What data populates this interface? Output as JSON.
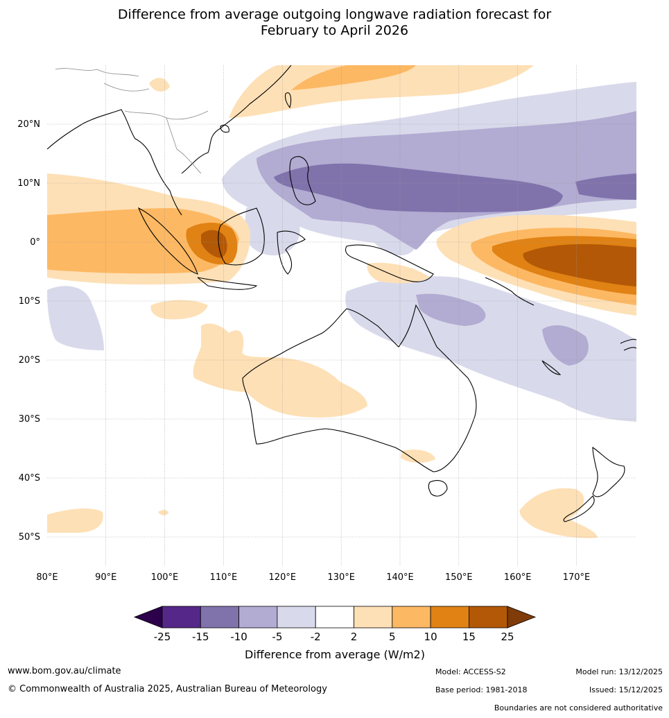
{
  "title_line1": "Difference from average outgoing longwave radiation forecast for",
  "title_line2": "February to April 2026",
  "map": {
    "lat_labels": [
      "20°N",
      "10°N",
      "0°",
      "10°S",
      "20°S",
      "30°S",
      "40°S",
      "50°S"
    ],
    "lon_labels": [
      "80°E",
      "90°E",
      "100°E",
      "110°E",
      "120°E",
      "130°E",
      "140°E",
      "150°E",
      "160°E",
      "170°E"
    ],
    "lon_range": [
      80,
      180
    ],
    "lat_range": [
      -55,
      30
    ]
  },
  "legend": {
    "title": "Difference from average (W/m2)",
    "ticks": [
      "-25",
      "-15",
      "-10",
      "-5",
      "-2",
      "2",
      "5",
      "10",
      "15",
      "25"
    ],
    "colors": {
      "below_min": "#2d004b",
      "bins": [
        "#542788",
        "#8073ac",
        "#b2abd2",
        "#d8daeb",
        "#ffffff",
        "#fee0b6",
        "#fdb863",
        "#e08214",
        "#b35806"
      ],
      "above_max": "#7f3b08"
    }
  },
  "footer": {
    "website": "www.bom.gov.au/climate",
    "copyright": "© Commonwealth of Australia 2025, Australian Bureau of Meteorology",
    "model": "Model: ACCESS-S2",
    "base_period": "Base period: 1981-2018",
    "model_run": "Model run: 13/12/2025",
    "issued": "Issued: 15/12/2025",
    "disclaimer": "Boundaries are not considered authoritative"
  }
}
